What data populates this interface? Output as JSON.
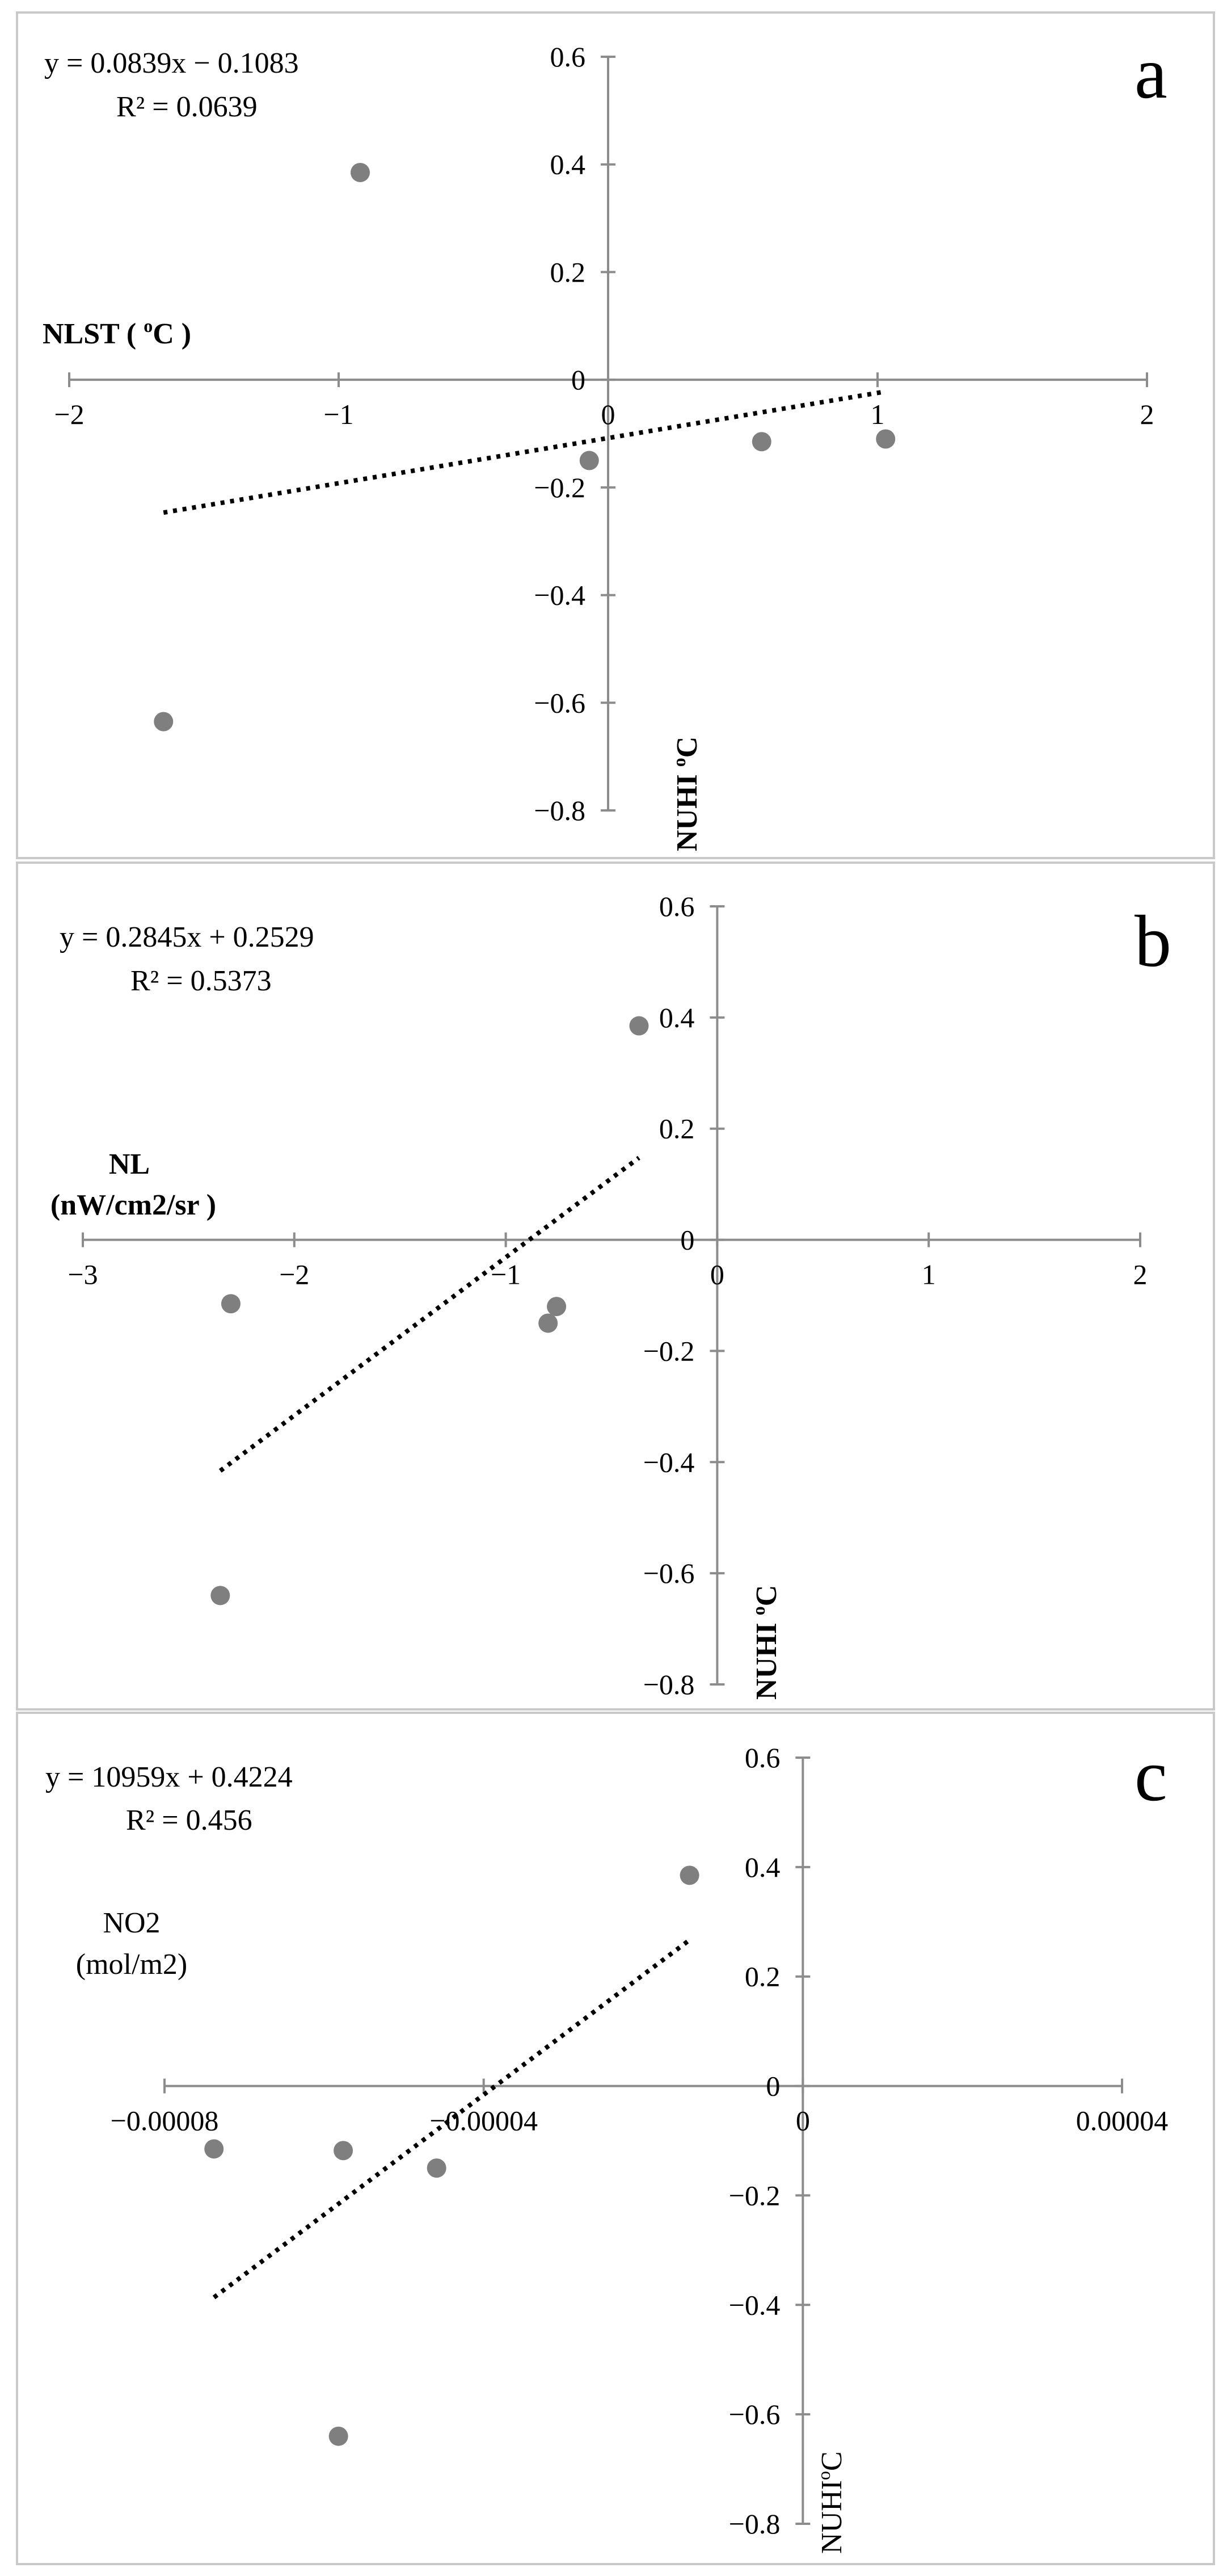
{
  "chart_data": [
    {
      "type": "scatter",
      "panel_label": "a",
      "xlabel": "NLST ( ",
      "xlabel_sup": "o",
      "xlabel_after": "C )",
      "ylabel": "NUHI ",
      "ylabel_sup": "o",
      "ylabel_after": "C",
      "xlim": [
        -2,
        2
      ],
      "ylim": [
        -0.8,
        0.6
      ],
      "x_ticks": [
        "−2",
        "−1",
        "0",
        "1",
        "2"
      ],
      "x_tick_values": [
        -2,
        -1,
        0,
        1,
        2
      ],
      "y_ticks": [
        "0.6",
        "0.4",
        "0.2",
        "0",
        "−0.2",
        "−0.4",
        "−0.6",
        "−0.8"
      ],
      "y_tick_values": [
        0.6,
        0.4,
        0.2,
        0,
        -0.2,
        -0.4,
        -0.6,
        -0.8
      ],
      "points": [
        {
          "x": -0.92,
          "y": 0.385
        },
        {
          "x": -1.65,
          "y": -0.635
        },
        {
          "x": -0.07,
          "y": -0.15
        },
        {
          "x": 0.57,
          "y": -0.115
        },
        {
          "x": 1.03,
          "y": -0.11
        }
      ],
      "trendline": {
        "slope": 0.0839,
        "intercept": -0.1083,
        "x_range": [
          -1.65,
          1.03
        ],
        "style": "dotted"
      },
      "equation": "y = 0.0839x − 0.1083",
      "r_squared": "R² = 0.0639"
    },
    {
      "type": "scatter",
      "panel_label": "b",
      "xlabel": "NL",
      "xlabel_line2": "(nW/cm2/sr )",
      "ylabel": "NUHI ",
      "ylabel_sup": "o",
      "ylabel_after": "C",
      "xlim": [
        -3,
        2
      ],
      "ylim": [
        -0.8,
        0.6
      ],
      "x_ticks": [
        "−3",
        "−2",
        "−1",
        "0",
        "1",
        "2"
      ],
      "x_tick_values": [
        -3,
        -2,
        -1,
        0,
        1,
        2
      ],
      "y_ticks": [
        "0.6",
        "0.4",
        "0.2",
        "0",
        "−0.2",
        "−0.4",
        "−0.6",
        "−0.8"
      ],
      "y_tick_values": [
        0.6,
        0.4,
        0.2,
        0,
        -0.2,
        -0.4,
        -0.6,
        -0.8
      ],
      "points": [
        {
          "x": -0.37,
          "y": 0.385
        },
        {
          "x": -2.3,
          "y": -0.115
        },
        {
          "x": -0.76,
          "y": -0.12
        },
        {
          "x": -0.8,
          "y": -0.15
        },
        {
          "x": -2.35,
          "y": -0.64
        }
      ],
      "trendline": {
        "slope": 0.2845,
        "intercept": 0.2529,
        "x_range": [
          -2.35,
          -0.37
        ],
        "style": "dotted"
      },
      "equation": "y = 0.2845x + 0.2529",
      "r_squared": "R² = 0.5373"
    },
    {
      "type": "scatter",
      "panel_label": "c",
      "xlabel": "NO2",
      "xlabel_line2": "(mol/m2)",
      "ylabel": "NUHI",
      "ylabel_sup": "o",
      "ylabel_after": "C",
      "xlim": [
        -8e-05,
        4e-05
      ],
      "ylim": [
        -0.8,
        0.6
      ],
      "x_ticks": [
        "−0.00008",
        "−0.00004",
        "0",
        "0.00004"
      ],
      "x_tick_values": [
        -8e-05,
        -4e-05,
        0,
        4e-05
      ],
      "y_ticks": [
        "0.6",
        "0.4",
        "0.2",
        "0",
        "−0.2",
        "−0.4",
        "−0.6",
        "−0.8"
      ],
      "y_tick_values": [
        0.6,
        0.4,
        0.2,
        0,
        -0.2,
        -0.4,
        -0.6,
        -0.8
      ],
      "points": [
        {
          "x": -1.42e-05,
          "y": 0.385
        },
        {
          "x": -7.38e-05,
          "y": -0.115
        },
        {
          "x": -5.76e-05,
          "y": -0.118
        },
        {
          "x": -4.59e-05,
          "y": -0.15
        },
        {
          "x": -5.82e-05,
          "y": -0.64
        }
      ],
      "trendline": {
        "slope": 10959,
        "intercept": 0.4224,
        "x_range": [
          -7.38e-05,
          -1.42e-05
        ],
        "style": "dotted"
      },
      "equation": "y = 10959x + 0.4224",
      "r_squared": "R² = 0.456"
    }
  ]
}
